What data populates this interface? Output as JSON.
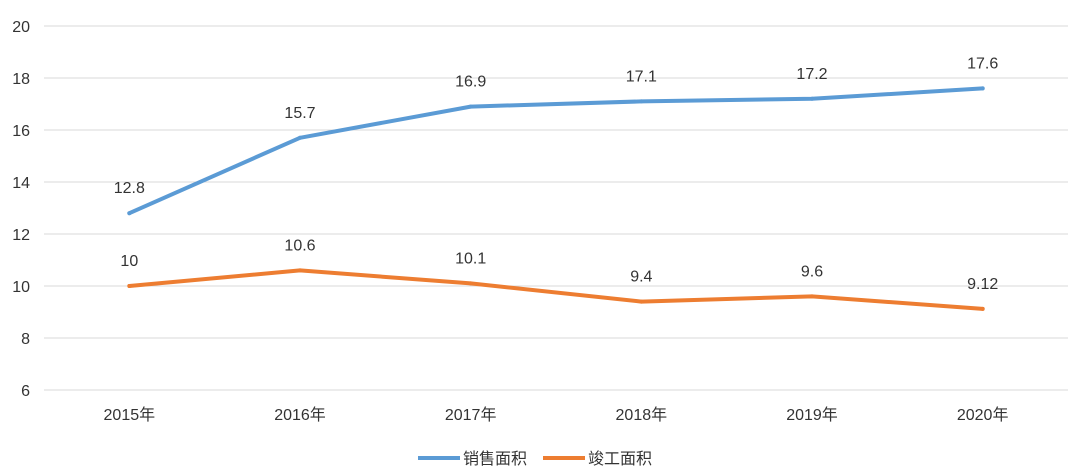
{
  "chart_data": {
    "type": "line",
    "categories": [
      "2015年",
      "2016年",
      "2017年",
      "2018年",
      "2019年",
      "2020年"
    ],
    "series": [
      {
        "name": "销售面积",
        "color": "#5b9bd5",
        "values": [
          12.8,
          15.7,
          16.9,
          17.1,
          17.2,
          17.6
        ]
      },
      {
        "name": "竣工面积",
        "color": "#ed7d31",
        "values": [
          10,
          10.6,
          10.1,
          9.4,
          9.6,
          9.12
        ]
      }
    ],
    "data_labels": [
      [
        "12.8",
        "15.7",
        "16.9",
        "17.1",
        "17.2",
        "17.6"
      ],
      [
        "10",
        "10.6",
        "10.1",
        "9.4",
        "9.6",
        "9.12"
      ]
    ],
    "yticks": [
      "6",
      "8",
      "10",
      "12",
      "14",
      "16",
      "18",
      "20"
    ],
    "ylim": [
      6,
      20
    ],
    "grid": true,
    "legend": "bottom-center",
    "title": "",
    "xlabel": "",
    "ylabel": ""
  }
}
